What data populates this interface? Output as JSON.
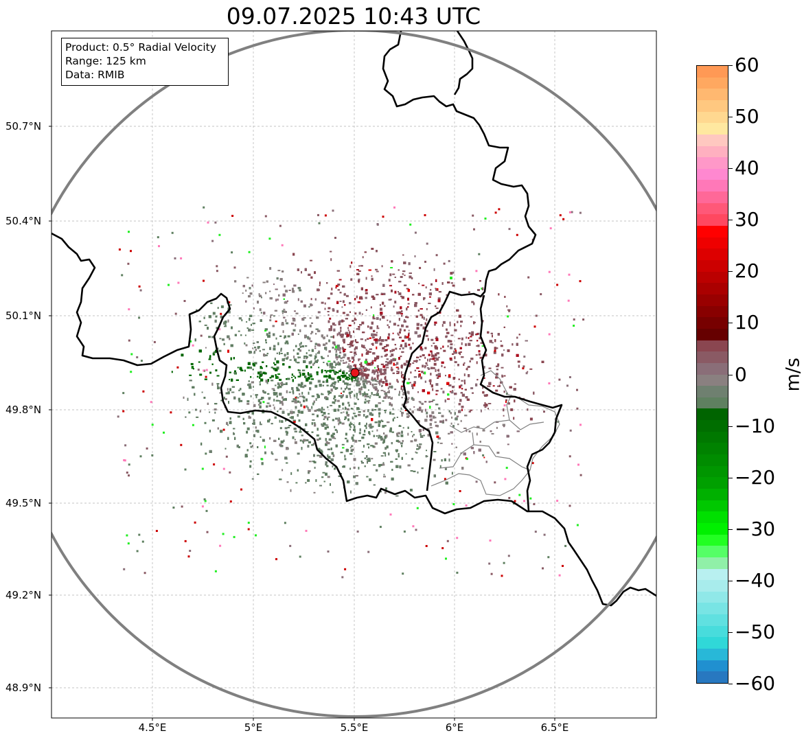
{
  "title": "09.07.2025 10:43 UTC",
  "info": {
    "product": "Product: 0.5° Radial Velocity",
    "range": "Range: 125 km",
    "data": "Data: RMIB"
  },
  "axes": {
    "lat_labels": [
      "50.7°N",
      "50.4°N",
      "50.1°N",
      "49.8°N",
      "49.5°N",
      "49.2°N",
      "48.9°N"
    ],
    "lon_labels": [
      "4.5°E",
      "5°E",
      "5.5°E",
      "6°E",
      "6.5°E"
    ],
    "grid": true
  },
  "radar_site": {
    "marker_color": "#e8141b"
  },
  "colorbar": {
    "label": "m/s",
    "ticks": [
      "60",
      "50",
      "40",
      "30",
      "20",
      "10",
      "0",
      "−10",
      "−20",
      "−30",
      "−40",
      "−50",
      "−60"
    ],
    "range": [
      -60,
      60
    ],
    "colors": [
      "#ff9955",
      "#ffa860",
      "#ffb870",
      "#ffc880",
      "#ffd890",
      "#ffe8a0",
      "#ffc8c0",
      "#ffb0c0",
      "#ff98c8",
      "#ff88d0",
      "#ff78b8",
      "#ff6898",
      "#ff5878",
      "#ff4860",
      "#ff0000",
      "#ee0000",
      "#dd0000",
      "#cc0000",
      "#bb0000",
      "#aa0000",
      "#990000",
      "#880000",
      "#770000",
      "#660000",
      "#8a4650",
      "#8a5a64",
      "#8a6e78",
      "#8a8080",
      "#6f8070",
      "#5f8060",
      "#006400",
      "#006e00",
      "#007800",
      "#008200",
      "#008c00",
      "#009600",
      "#00a000",
      "#00b000",
      "#00c800",
      "#00e000",
      "#00f000",
      "#22ff22",
      "#55ff66",
      "#90f0a8",
      "#b8f0f0",
      "#a8ecec",
      "#90e8e8",
      "#78e4e4",
      "#60e0e0",
      "#48dcdc",
      "#30d8d8",
      "#28b8d8",
      "#2090d0",
      "#2878c0"
    ]
  }
}
